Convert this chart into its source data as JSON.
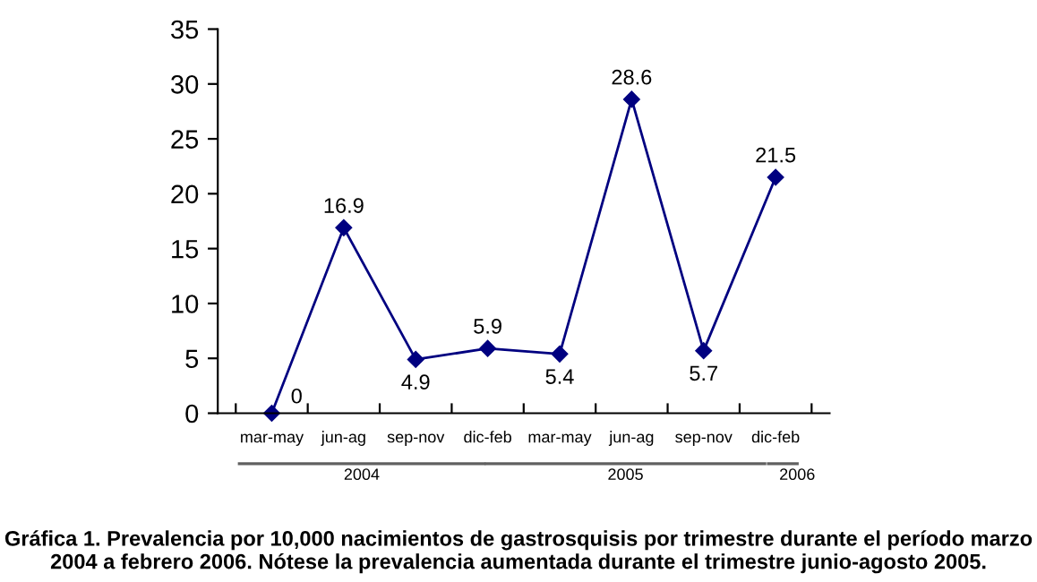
{
  "chart_data": {
    "type": "line",
    "title": "Gráfica 1. Prevalencia por 10,000 nacimientos de gastrosquisis por trimestre durante el período marzo 2004 a febrero 2006. Nótese la prevalencia aumentada durante el trimestre junio-agosto 2005.",
    "categories": [
      "mar-may",
      "jun-ag",
      "sep-nov",
      "dic-feb",
      "mar-may",
      "jun-ag",
      "sep-nov",
      "dic-feb"
    ],
    "series": [
      {
        "color": "#000080",
        "values": [
          0,
          16.9,
          4.9,
          5.9,
          5.4,
          28.6,
          5.7,
          21.5
        ]
      }
    ],
    "ylim": [
      0,
      35
    ],
    "yticks": [
      0,
      5,
      10,
      15,
      20,
      25,
      30,
      35
    ],
    "grid": false,
    "marker": "diamond",
    "line_style": "solid",
    "data_labels": true,
    "annotations": [
      "2004",
      "2005",
      "2006"
    ]
  }
}
